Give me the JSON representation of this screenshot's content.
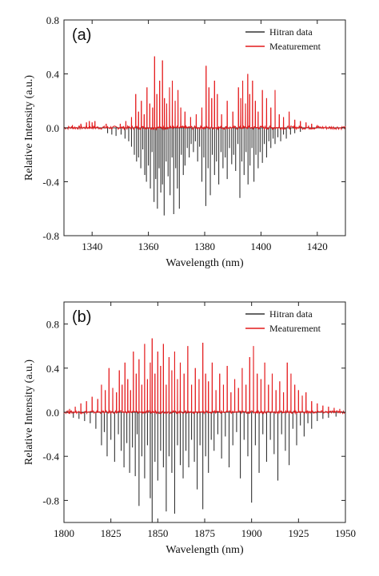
{
  "chart_data": [
    {
      "type": "line",
      "panel_label": "(a)",
      "xlabel": "Wavelength (nm)",
      "ylabel": "Relative Intensity (a.u.)",
      "xlim": [
        1330,
        1430
      ],
      "ylim": [
        -0.8,
        0.8
      ],
      "xticks": [
        1340,
        1360,
        1380,
        1400,
        1420
      ],
      "xtick_labels": [
        "1340",
        "1360",
        "1380",
        "1400",
        "1420"
      ],
      "yticks": [
        0.8,
        0.4,
        0.0,
        -0.4,
        -0.8
      ],
      "ytick_labels": [
        "0.8",
        "0.4",
        "0.0",
        "-0.4",
        "-0.8"
      ],
      "grid": false,
      "legend_position": "top-right",
      "colors": {
        "hitran": "#333333",
        "measurement": "#e41a1c"
      },
      "series": [
        {
          "name": "Hitran data",
          "style": "sticks-negative",
          "x": [
            1345.5,
            1347,
            1348.5,
            1350.3,
            1351.7,
            1353,
            1354,
            1355,
            1355.8,
            1356.5,
            1357.3,
            1358,
            1358.7,
            1359.3,
            1360,
            1360.7,
            1361.3,
            1362,
            1362.6,
            1363.2,
            1363.8,
            1364.4,
            1365,
            1365.6,
            1366.3,
            1367,
            1367.7,
            1368.4,
            1369,
            1369.7,
            1370.3,
            1371,
            1371.7,
            1372.4,
            1373,
            1373.8,
            1374.5,
            1375.2,
            1376,
            1376.7,
            1377.5,
            1378.2,
            1379,
            1379.7,
            1380.4,
            1381.2,
            1382,
            1382.7,
            1383.5,
            1384.2,
            1385,
            1385.8,
            1386.5,
            1387.3,
            1388,
            1388.8,
            1389.6,
            1390.3,
            1391,
            1391.8,
            1392.5,
            1393.2,
            1394,
            1394.7,
            1395.4,
            1396.1,
            1396.8,
            1397.5,
            1398.2,
            1399,
            1399.7,
            1400.5,
            1401.2,
            1402,
            1402.8,
            1403.5,
            1404.3,
            1405,
            1406,
            1407,
            1408,
            1409,
            1410.5,
            1412,
            1414
          ],
          "values": [
            -0.04,
            -0.05,
            -0.06,
            -0.05,
            -0.08,
            -0.1,
            -0.14,
            -0.2,
            -0.25,
            -0.22,
            -0.3,
            -0.16,
            -0.35,
            -0.4,
            -0.28,
            -0.45,
            -0.18,
            -0.55,
            -0.38,
            -0.6,
            -0.3,
            -0.48,
            -0.42,
            -0.65,
            -0.25,
            -0.36,
            -0.5,
            -0.22,
            -0.64,
            -0.3,
            -0.45,
            -0.6,
            -0.2,
            -0.35,
            -0.28,
            -0.15,
            -0.22,
            -0.12,
            -0.18,
            -0.1,
            -0.25,
            -0.14,
            -0.4,
            -0.22,
            -0.58,
            -0.3,
            -0.5,
            -0.2,
            -0.35,
            -0.25,
            -0.42,
            -0.18,
            -0.3,
            -0.22,
            -0.38,
            -0.15,
            -0.27,
            -0.2,
            -0.32,
            -0.12,
            -0.52,
            -0.25,
            -0.35,
            -0.18,
            -0.42,
            -0.28,
            -0.15,
            -0.4,
            -0.2,
            -0.3,
            -0.18,
            -0.26,
            -0.12,
            -0.22,
            -0.1,
            -0.15,
            -0.08,
            -0.12,
            -0.07,
            -0.1,
            -0.05,
            -0.08,
            -0.05,
            -0.04,
            -0.03
          ]
        },
        {
          "name": "Meaturement",
          "style": "noisy-line",
          "peaks_x": [
            1333,
            1336,
            1338,
            1339,
            1340,
            1341,
            1345,
            1350,
            1352,
            1354,
            1355.5,
            1356.5,
            1357.5,
            1358.5,
            1359.5,
            1360.5,
            1361.5,
            1362.2,
            1363,
            1364,
            1365,
            1365.7,
            1366.5,
            1367.5,
            1368.5,
            1369.5,
            1370.5,
            1371.5,
            1373,
            1375,
            1377,
            1379,
            1380.5,
            1381.5,
            1382.5,
            1383.5,
            1384.5,
            1386,
            1388,
            1390,
            1392,
            1392.8,
            1393.5,
            1394.5,
            1395.3,
            1396,
            1397,
            1398,
            1399,
            1400.5,
            1402,
            1403.5,
            1405,
            1406.5,
            1408,
            1410,
            1412,
            1414,
            1416,
            1418,
            1420
          ],
          "peaks_y": [
            0.02,
            0.03,
            0.04,
            0.05,
            0.04,
            0.05,
            0.03,
            0.03,
            0.05,
            0.08,
            0.25,
            0.12,
            0.2,
            0.1,
            0.3,
            0.18,
            0.15,
            0.53,
            0.25,
            0.35,
            0.5,
            0.22,
            0.18,
            0.3,
            0.35,
            0.2,
            0.28,
            0.15,
            0.12,
            0.08,
            0.1,
            0.15,
            0.46,
            0.3,
            0.22,
            0.35,
            0.25,
            0.1,
            0.2,
            0.12,
            0.3,
            0.22,
            0.35,
            0.18,
            0.4,
            0.25,
            0.35,
            0.2,
            0.12,
            0.28,
            0.22,
            0.15,
            0.28,
            0.1,
            0.08,
            0.12,
            0.06,
            0.05,
            0.04,
            0.03,
            0.02
          ]
        }
      ]
    },
    {
      "type": "line",
      "panel_label": "(b)",
      "xlabel": "Wavelength (nm)",
      "ylabel": "Relative Intensity (a.u.)",
      "xlim": [
        1800,
        1950
      ],
      "ylim": [
        -1.0,
        1.0
      ],
      "xticks": [
        1800,
        1825,
        1850,
        1875,
        1900,
        1925,
        1950
      ],
      "xtick_labels": [
        "1800",
        "1825",
        "1850",
        "1875",
        "1900",
        "1925",
        "1950"
      ],
      "yticks": [
        0.8,
        0.4,
        0.0,
        -0.4,
        -0.8
      ],
      "ytick_labels": [
        "0.8",
        "0.4",
        "0.0",
        "-0.4",
        "-0.8"
      ],
      "grid": false,
      "legend_position": "top-right",
      "colors": {
        "hitran": "#333333",
        "measurement": "#e41a1c"
      },
      "series": [
        {
          "name": "Hitran data",
          "style": "sticks-negative",
          "x": [
            1805,
            1808,
            1811,
            1814,
            1817,
            1820,
            1821.5,
            1823,
            1825,
            1827,
            1829,
            1830.5,
            1832,
            1833.5,
            1835,
            1836.5,
            1838,
            1839,
            1840,
            1841.5,
            1843,
            1844.5,
            1846,
            1847,
            1848.5,
            1850,
            1851.5,
            1853,
            1854.5,
            1856,
            1857.5,
            1859,
            1860.5,
            1862,
            1863.5,
            1865,
            1866.5,
            1868,
            1869.5,
            1871,
            1872.5,
            1874,
            1875.5,
            1877,
            1878.5,
            1880,
            1882,
            1884,
            1886,
            1888,
            1890,
            1892,
            1894,
            1896,
            1898,
            1900,
            1902,
            1904,
            1906,
            1908,
            1910,
            1912,
            1914,
            1916,
            1918,
            1920,
            1922,
            1924,
            1926,
            1928,
            1930,
            1932,
            1935,
            1938,
            1941,
            1945
          ],
          "values": [
            -0.05,
            -0.06,
            -0.08,
            -0.1,
            -0.15,
            -0.3,
            -0.18,
            -0.4,
            -0.25,
            -0.45,
            -0.2,
            -0.35,
            -0.5,
            -0.28,
            -0.55,
            -0.32,
            -0.58,
            -0.2,
            -0.85,
            -0.4,
            -0.6,
            -0.3,
            -0.78,
            -1.0,
            -0.45,
            -0.62,
            -0.35,
            -0.5,
            -0.9,
            -0.4,
            -0.55,
            -0.92,
            -0.3,
            -0.48,
            -0.6,
            -0.35,
            -0.5,
            -0.25,
            -0.45,
            -0.7,
            -0.3,
            -0.88,
            -0.4,
            -0.55,
            -0.25,
            -0.35,
            -0.2,
            -0.42,
            -0.22,
            -0.5,
            -0.3,
            -0.18,
            -0.6,
            -0.25,
            -0.4,
            -0.82,
            -0.3,
            -0.55,
            -0.2,
            -0.45,
            -0.25,
            -0.38,
            -0.62,
            -0.2,
            -0.35,
            -0.48,
            -0.15,
            -0.3,
            -0.12,
            -0.22,
            -0.1,
            -0.15,
            -0.08,
            -0.06,
            -0.05,
            -0.04
          ]
        },
        {
          "name": "Meaturement",
          "style": "noisy-line",
          "peaks_x": [
            1803,
            1806,
            1809,
            1812,
            1815,
            1818,
            1820,
            1822,
            1824,
            1826,
            1828,
            1829.5,
            1831,
            1832.5,
            1834,
            1835.5,
            1837,
            1838.5,
            1840,
            1841.5,
            1843,
            1844.5,
            1846,
            1847,
            1848.5,
            1850,
            1851.5,
            1853,
            1854.5,
            1856,
            1857.5,
            1859,
            1860.5,
            1862,
            1864,
            1866,
            1868,
            1870,
            1872,
            1874,
            1875.5,
            1877,
            1879,
            1881,
            1883,
            1885,
            1887,
            1889,
            1891,
            1893,
            1895,
            1897,
            1899,
            1901,
            1903,
            1905,
            1907,
            1909,
            1911,
            1913,
            1915,
            1917,
            1919,
            1921,
            1923,
            1925,
            1927,
            1929,
            1932,
            1935,
            1938,
            1941,
            1944,
            1947
          ],
          "peaks_y": [
            0.03,
            0.05,
            0.08,
            0.1,
            0.14,
            0.12,
            0.25,
            0.2,
            0.4,
            0.22,
            0.18,
            0.38,
            0.25,
            0.45,
            0.3,
            0.2,
            0.55,
            0.35,
            0.48,
            0.25,
            0.62,
            0.3,
            0.45,
            0.67,
            0.35,
            0.55,
            0.42,
            0.62,
            0.25,
            0.5,
            0.38,
            0.55,
            0.3,
            0.45,
            0.35,
            0.6,
            0.25,
            0.4,
            0.3,
            0.63,
            0.35,
            0.28,
            0.45,
            0.2,
            0.35,
            0.25,
            0.42,
            0.18,
            0.3,
            0.22,
            0.4,
            0.25,
            0.5,
            0.6,
            0.35,
            0.3,
            0.45,
            0.25,
            0.35,
            0.2,
            0.28,
            0.18,
            0.45,
            0.35,
            0.25,
            0.2,
            0.15,
            0.18,
            0.1,
            0.08,
            0.06,
            0.05,
            0.04,
            0.03
          ]
        }
      ]
    }
  ]
}
